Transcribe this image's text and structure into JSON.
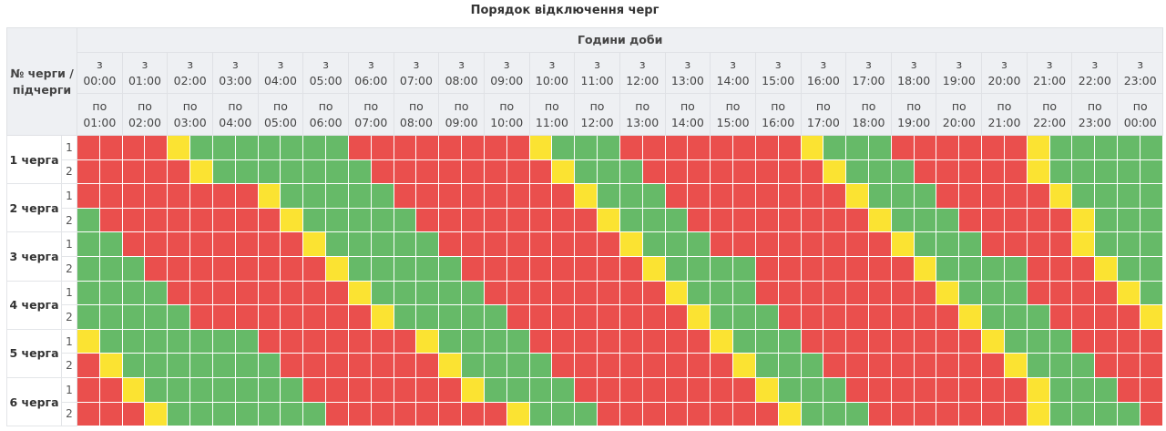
{
  "title": "Порядок відключення черг",
  "header": {
    "corner_label": "№ черги / підчерги",
    "hours_label": "Години доби",
    "from_prefix": "з",
    "to_prefix": "по",
    "from_times": [
      "00:00",
      "01:00",
      "02:00",
      "03:00",
      "04:00",
      "05:00",
      "06:00",
      "07:00",
      "08:00",
      "09:00",
      "10:00",
      "11:00",
      "12:00",
      "13:00",
      "14:00",
      "15:00",
      "16:00",
      "17:00",
      "18:00",
      "19:00",
      "20:00",
      "21:00",
      "22:00",
      "23:00"
    ],
    "to_times": [
      "01:00",
      "02:00",
      "03:00",
      "04:00",
      "05:00",
      "06:00",
      "07:00",
      "08:00",
      "09:00",
      "10:00",
      "11:00",
      "12:00",
      "13:00",
      "14:00",
      "15:00",
      "16:00",
      "17:00",
      "18:00",
      "19:00",
      "20:00",
      "21:00",
      "22:00",
      "23:00",
      "00:00"
    ]
  },
  "legend_colors": {
    "R": "#ea4f4d",
    "G": "#66ba68",
    "Y": "#fbe332"
  },
  "status_key": {
    "R": "off",
    "G": "on",
    "Y": "possible"
  },
  "queues": [
    {
      "label": "1 черга",
      "sub": [
        {
          "num": "1",
          "slots": "RRRRYGGGGGGGRRRRRRRRYGGGRRRRRRRRYGGGRRRRRRYGGGGG"
        },
        {
          "num": "2",
          "slots": "RRRRRYGGGGGGGRRRRRRRRYGGGRRRRRRRRYGGGRRRRRYGGGGG"
        }
      ]
    },
    {
      "label": "2 черга",
      "sub": [
        {
          "num": "1",
          "slots": "RRRRRRRRYGGGGGRRRRRRRRYGGGRRRRRRRRYGGGRRRRRYGGGG"
        },
        {
          "num": "2",
          "slots": "GRRRRRRRRYGGGGGRRRRRRRRYGGGRRRRRRRRYGGGRRRRRYGGG"
        }
      ]
    },
    {
      "label": "3 черга",
      "sub": [
        {
          "num": "1",
          "slots": "GGRRRRRRRRYGGGGGRRRRRRRRYGGGRRRRRRRRYGGGRRRRYGGG"
        },
        {
          "num": "2",
          "slots": "GGGRRRRRRRRYGGGGGRRRRRRRRYGGGGRRRRRRRYGGGGRRRYGG"
        }
      ]
    },
    {
      "label": "4 черга",
      "sub": [
        {
          "num": "1",
          "slots": "GGGGRRRRRRRRYGGGGGRRRRRRRRYGGGRRRRRRRRYGGGRRRRYG"
        },
        {
          "num": "2",
          "slots": "GGGGGRRRRRRRRYGGGGGRRRRRRRRYGGGRRRRRRRRYGGGRRRRY"
        }
      ]
    },
    {
      "label": "5 черга",
      "sub": [
        {
          "num": "1",
          "slots": "YGGGGGGGRRRRRRRYGGGGRRRRRRRRYGGGRRRRRRRRYGGGRRRR"
        },
        {
          "num": "2",
          "slots": "RYGGGGGGGRRRRRRRYGGGGRRRRRRRRYGGGRRRRRRRRYGGGRRR"
        }
      ]
    },
    {
      "label": "6 черга",
      "sub": [
        {
          "num": "1",
          "slots": "RRYGGGGGGGRRRRRRRYGGGGRRRRRRRRYGGGRRRRRRRRYGGGRR"
        },
        {
          "num": "2",
          "slots": "RRRYGGGGGGGRRRRRRRRYGGGRRRRRRRRYGGGRRRRRRRYGGGGR"
        }
      ]
    }
  ]
}
